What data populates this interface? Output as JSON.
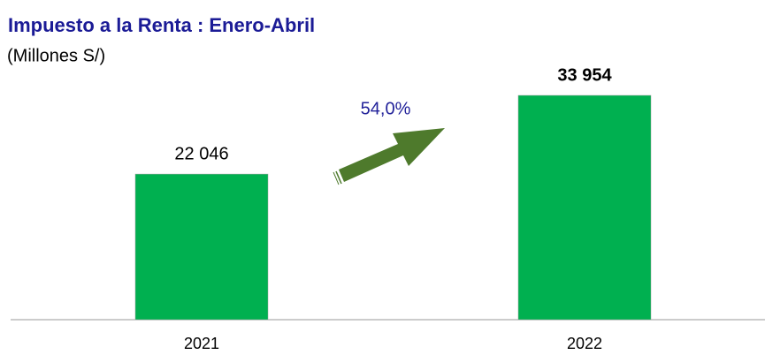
{
  "chart_data": {
    "type": "bar",
    "title": "Impuesto a la Renta : Enero-Abril",
    "subtitle": "(Millones S/)",
    "categories": [
      "2021",
      "2022"
    ],
    "values": [
      22046,
      33954
    ],
    "value_labels": [
      "22 046",
      "33 954"
    ],
    "color": "#00b050",
    "annotation": "54,0%"
  }
}
